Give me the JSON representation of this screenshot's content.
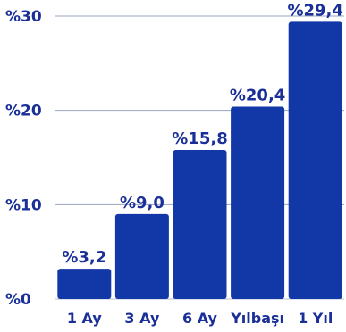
{
  "chart_data": {
    "type": "bar",
    "categories": [
      "1 Ay",
      "3 Ay",
      "6 Ay",
      "Yılbaşı",
      "1 Yıl"
    ],
    "values": [
      3.2,
      9.0,
      15.8,
      20.4,
      29.4
    ],
    "value_labels": [
      "%3,2",
      "%9,0",
      "%15,8",
      "%20,4",
      "%29,4"
    ],
    "y_ticks": [
      0,
      10,
      20,
      30
    ],
    "y_tick_labels": [
      "%0",
      "%10",
      "%20",
      "%30"
    ],
    "ylim": [
      0,
      30
    ],
    "grid": true,
    "title": "",
    "xlabel": "",
    "ylabel": "",
    "colors": {
      "bar": "#1238a8",
      "text": "#1a2f97",
      "grid": "#9aa5c2",
      "axis": "#b7bfd2"
    }
  }
}
